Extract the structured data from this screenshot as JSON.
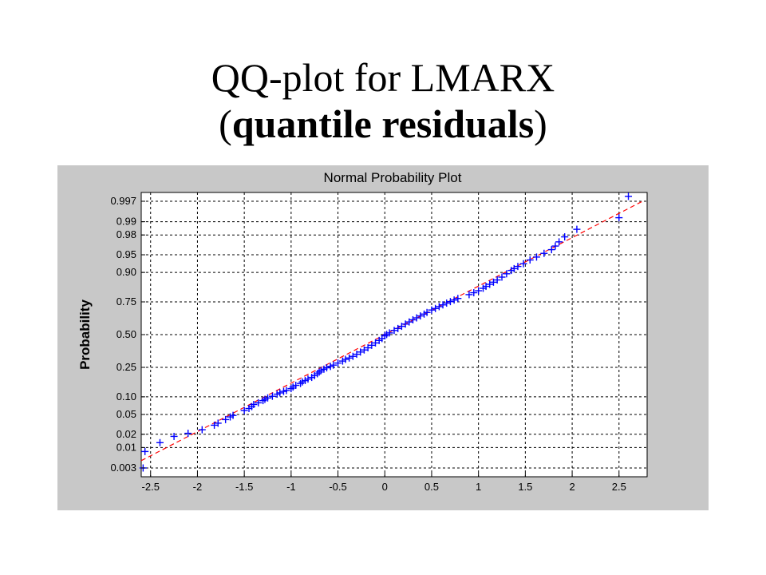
{
  "slide": {
    "title_line1": "QQ-plot for LMARX",
    "title_line2_open": "(",
    "title_line2_bold": "quantile residuals",
    "title_line2_close": ")"
  },
  "chart_data": {
    "type": "scatter",
    "title": "Normal Probability Plot",
    "xlabel": "",
    "ylabel": "Probability",
    "xlim": [
      -2.6,
      2.8
    ],
    "y_scale": "normal-probability",
    "ylim": [
      0.0017,
      0.9983
    ],
    "x_ticks": [
      -2.5,
      -2,
      -1.5,
      -1,
      -0.5,
      0,
      0.5,
      1,
      1.5,
      2,
      2.5
    ],
    "x_tick_labels": [
      "-2.5",
      "-2",
      "-1.5",
      "-1",
      "-0.5",
      "0",
      "0.5",
      "1",
      "1.5",
      "2",
      "2.5"
    ],
    "y_ticks": [
      0.003,
      0.01,
      0.02,
      0.05,
      0.1,
      0.25,
      0.5,
      0.75,
      0.9,
      0.95,
      0.98,
      0.99,
      0.997
    ],
    "y_tick_labels": [
      "0.003",
      "0.01",
      "0.02",
      "0.05",
      "0.10",
      "0.25",
      "0.50",
      "0.75",
      "0.90",
      "0.95",
      "0.98",
      "0.99",
      "0.997"
    ],
    "grid": true,
    "marker_color": "#0000ff",
    "reference_line_color": "#ff0000",
    "reference_line": [
      [
        -2.6,
        0.0047
      ],
      [
        2.75,
        0.997
      ]
    ],
    "points": [
      [
        -2.58,
        0.003
      ],
      [
        -2.56,
        0.008
      ],
      [
        -2.4,
        0.013
      ],
      [
        -2.25,
        0.018
      ],
      [
        -2.1,
        0.021
      ],
      [
        -1.95,
        0.025
      ],
      [
        -1.82,
        0.031
      ],
      [
        -1.78,
        0.034
      ],
      [
        -1.7,
        0.04
      ],
      [
        -1.65,
        0.045
      ],
      [
        -1.62,
        0.048
      ],
      [
        -1.5,
        0.059
      ],
      [
        -1.45,
        0.064
      ],
      [
        -1.42,
        0.069
      ],
      [
        -1.4,
        0.075
      ],
      [
        -1.35,
        0.08
      ],
      [
        -1.3,
        0.087
      ],
      [
        -1.28,
        0.091
      ],
      [
        -1.25,
        0.096
      ],
      [
        -1.2,
        0.102
      ],
      [
        -1.15,
        0.11
      ],
      [
        -1.12,
        0.115
      ],
      [
        -1.08,
        0.121
      ],
      [
        -1.05,
        0.125
      ],
      [
        -1.0,
        0.133
      ],
      [
        -0.98,
        0.14
      ],
      [
        -0.95,
        0.148
      ],
      [
        -0.9,
        0.157
      ],
      [
        -0.88,
        0.165
      ],
      [
        -0.85,
        0.172
      ],
      [
        -0.82,
        0.18
      ],
      [
        -0.78,
        0.189
      ],
      [
        -0.75,
        0.199
      ],
      [
        -0.72,
        0.21
      ],
      [
        -0.7,
        0.22
      ],
      [
        -0.68,
        0.23
      ],
      [
        -0.65,
        0.238
      ],
      [
        -0.62,
        0.247
      ],
      [
        -0.58,
        0.256
      ],
      [
        -0.55,
        0.265
      ],
      [
        -0.5,
        0.279
      ],
      [
        -0.45,
        0.293
      ],
      [
        -0.42,
        0.305
      ],
      [
        -0.38,
        0.315
      ],
      [
        -0.34,
        0.327
      ],
      [
        -0.3,
        0.343
      ],
      [
        -0.26,
        0.36
      ],
      [
        -0.22,
        0.376
      ],
      [
        -0.18,
        0.393
      ],
      [
        -0.14,
        0.413
      ],
      [
        -0.1,
        0.432
      ],
      [
        -0.06,
        0.452
      ],
      [
        -0.03,
        0.468
      ],
      [
        0.0,
        0.49
      ],
      [
        0.02,
        0.501
      ],
      [
        0.05,
        0.514
      ],
      [
        0.1,
        0.534
      ],
      [
        0.14,
        0.55
      ],
      [
        0.18,
        0.568
      ],
      [
        0.22,
        0.586
      ],
      [
        0.26,
        0.603
      ],
      [
        0.3,
        0.62
      ],
      [
        0.34,
        0.635
      ],
      [
        0.38,
        0.65
      ],
      [
        0.42,
        0.664
      ],
      [
        0.45,
        0.676
      ],
      [
        0.5,
        0.694
      ],
      [
        0.54,
        0.705
      ],
      [
        0.58,
        0.718
      ],
      [
        0.62,
        0.73
      ],
      [
        0.66,
        0.742
      ],
      [
        0.7,
        0.752
      ],
      [
        0.74,
        0.762
      ],
      [
        0.78,
        0.772
      ],
      [
        0.9,
        0.795
      ],
      [
        0.95,
        0.806
      ],
      [
        1.0,
        0.817
      ],
      [
        1.05,
        0.83
      ],
      [
        1.08,
        0.84
      ],
      [
        1.12,
        0.85
      ],
      [
        1.16,
        0.86
      ],
      [
        1.2,
        0.87
      ],
      [
        1.25,
        0.882
      ],
      [
        1.3,
        0.895
      ],
      [
        1.35,
        0.907
      ],
      [
        1.38,
        0.913
      ],
      [
        1.42,
        0.92
      ],
      [
        1.48,
        0.928
      ],
      [
        1.55,
        0.938
      ],
      [
        1.62,
        0.945
      ],
      [
        1.7,
        0.953
      ],
      [
        1.78,
        0.96
      ],
      [
        1.82,
        0.966
      ],
      [
        1.86,
        0.972
      ],
      [
        1.92,
        0.978
      ],
      [
        2.05,
        0.985
      ],
      [
        2.5,
        0.992
      ],
      [
        2.6,
        0.9978
      ]
    ]
  }
}
